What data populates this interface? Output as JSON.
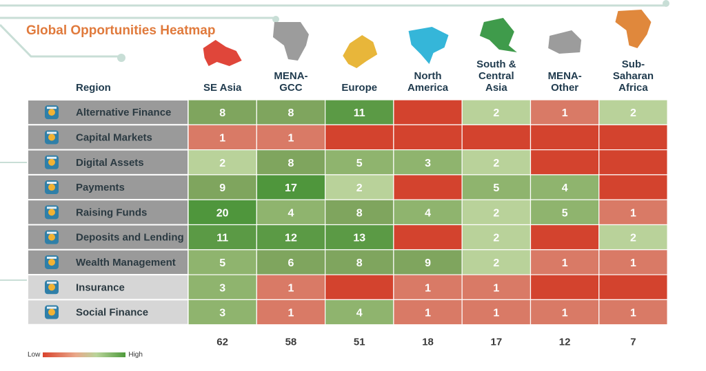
{
  "chart_data": {
    "type": "heatmap",
    "title": "Global Opportunities Heatmap",
    "row_header": "Region",
    "columns": [
      [
        "SE Asia"
      ],
      [
        "MENA-",
        "GCC"
      ],
      [
        "Europe"
      ],
      [
        "North",
        "America"
      ],
      [
        "South &",
        "Central",
        "Asia"
      ],
      [
        "MENA-",
        "Other"
      ],
      [
        "Sub-",
        "Saharan",
        "Africa"
      ]
    ],
    "rows": [
      "Alternative Finance",
      "Capital Markets",
      "Digital Assets",
      "Payments",
      "Raising Funds",
      "Deposits and Lending",
      "Wealth Management",
      "Insurance",
      "Social Finance"
    ],
    "row_icons": [
      "money-icon",
      "chart-screen-icon",
      "wallet-icon",
      "mobile-payment-icon",
      "money-stack-icon",
      "hand-coins-icon",
      "money-bag-icon",
      "shield-icon",
      "network-icon"
    ],
    "values": [
      [
        8,
        8,
        11,
        null,
        2,
        1,
        2
      ],
      [
        1,
        1,
        null,
        null,
        null,
        null,
        null
      ],
      [
        2,
        8,
        5,
        3,
        2,
        null,
        null
      ],
      [
        9,
        17,
        2,
        null,
        5,
        4,
        null
      ],
      [
        20,
        4,
        8,
        4,
        2,
        5,
        1
      ],
      [
        11,
        12,
        13,
        null,
        2,
        null,
        2
      ],
      [
        5,
        6,
        8,
        9,
        2,
        1,
        1
      ],
      [
        3,
        1,
        null,
        1,
        1,
        null,
        null
      ],
      [
        3,
        1,
        4,
        1,
        1,
        1,
        1
      ]
    ],
    "totals": [
      62,
      58,
      51,
      18,
      17,
      12,
      7
    ],
    "legend": {
      "low": "Low",
      "high": "High"
    },
    "colors": {
      "v0": "#d3432e",
      "v1": "#d97a66",
      "v2": "#b9d29a",
      "v3to5": "#8fb46e",
      "v6to10": "#7fa55e",
      "v11to16": "#5b9a45",
      "v17up": "#4f963c",
      "header_dark": "#9a9a9a",
      "header_light": "#d6d6d6",
      "title": "#e07a3c",
      "map_teal": "#35b6d9",
      "map_green": "#3f9b4b"
    }
  }
}
